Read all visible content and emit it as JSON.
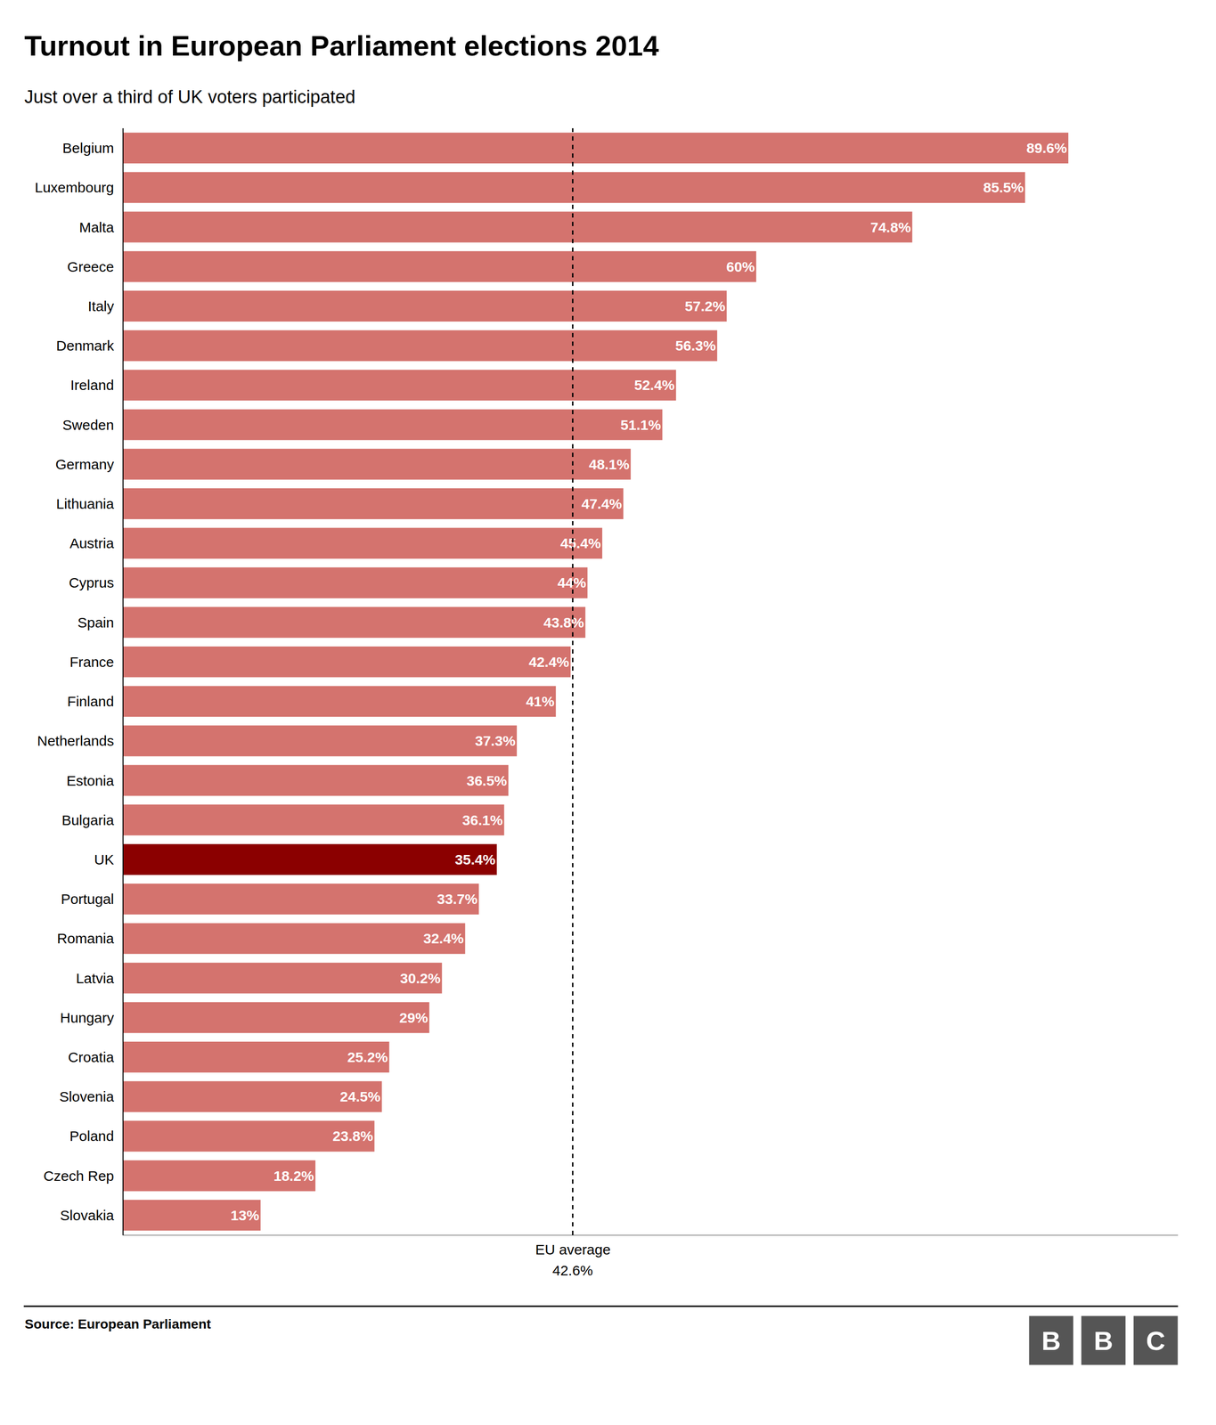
{
  "chart_data": {
    "type": "bar",
    "orientation": "horizontal",
    "title": "Turnout in European Parliament elections 2014",
    "subtitle": "Just over a third of UK voters participated",
    "source": "Source: European Parliament",
    "categories": [
      "Belgium",
      "Luxembourg",
      "Malta",
      "Greece",
      "Italy",
      "Denmark",
      "Ireland",
      "Sweden",
      "Germany",
      "Lithuania",
      "Austria",
      "Cyprus",
      "Spain",
      "France",
      "Finland",
      "Netherlands",
      "Estonia",
      "Bulgaria",
      "UK",
      "Portugal",
      "Romania",
      "Latvia",
      "Hungary",
      "Croatia",
      "Slovenia",
      "Poland",
      "Czech Rep",
      "Slovakia"
    ],
    "values": [
      89.6,
      85.5,
      74.8,
      60.0,
      57.2,
      56.3,
      52.4,
      51.1,
      48.1,
      47.4,
      45.4,
      44.0,
      43.8,
      42.4,
      41.0,
      37.3,
      36.5,
      36.1,
      35.4,
      33.7,
      32.4,
      30.2,
      29.0,
      25.2,
      24.5,
      23.8,
      18.2,
      13.0
    ],
    "value_labels": [
      "89.6%",
      "85.5%",
      "74.8%",
      "60%",
      "57.2%",
      "56.3%",
      "52.4%",
      "51.1%",
      "48.1%",
      "47.4%",
      "45.4%",
      "44%",
      "43.8%",
      "42.4%",
      "41%",
      "37.3%",
      "36.5%",
      "36.1%",
      "35.4%",
      "33.7%",
      "32.4%",
      "30.2%",
      "29%",
      "25.2%",
      "24.5%",
      "23.8%",
      "18.2%",
      "13%"
    ],
    "colors": [
      "#d4736e",
      "#d4736e",
      "#d4736e",
      "#d4736e",
      "#d4736e",
      "#d4736e",
      "#d4736e",
      "#d4736e",
      "#d4736e",
      "#d4736e",
      "#d4736e",
      "#d4736e",
      "#d4736e",
      "#d4736e",
      "#d4736e",
      "#d4736e",
      "#d4736e",
      "#d4736e",
      "#8b0000",
      "#d4736e",
      "#d4736e",
      "#d4736e",
      "#d4736e",
      "#d4736e",
      "#d4736e",
      "#d4736e",
      "#d4736e",
      "#d4736e"
    ],
    "data_labels": true,
    "xlim": [
      0,
      100
    ],
    "tick_labels": "y",
    "grid": false,
    "reference_lines": [
      {
        "x": 42.6,
        "label": "EU average",
        "value_label": "42.6%"
      }
    ],
    "logo": [
      "B",
      "B",
      "C"
    ]
  }
}
